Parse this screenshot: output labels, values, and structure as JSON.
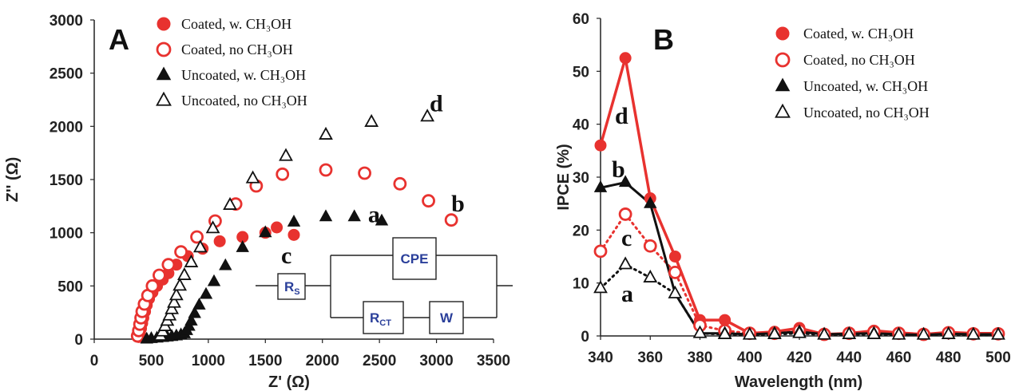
{
  "colors": {
    "red": "#e8322f",
    "black": "#111111",
    "circuit_text": "#2a3f9a"
  },
  "chart_data": [
    {
      "type": "scatter",
      "panel_label": "A",
      "xlabel": "Z' (Ω)",
      "ylabel": "Z'' (Ω)",
      "xlim": [
        0,
        3500
      ],
      "ylim": [
        0,
        3000
      ],
      "x_ticks": [
        0,
        500,
        1000,
        1500,
        2000,
        2500,
        3000,
        3500
      ],
      "y_ticks": [
        0,
        500,
        1000,
        1500,
        2000,
        2500,
        3000
      ],
      "grid": false,
      "legend_position": "top-left",
      "series": [
        {
          "name": "Coated, w. CH₃OH",
          "marker": "filled-circle",
          "color": "#e8322f",
          "curve_label": "d",
          "x": [
            390,
            400,
            410,
            420,
            430,
            445,
            460,
            480,
            510,
            550,
            600,
            650,
            720,
            820,
            950,
            1100,
            1300,
            1500,
            1600,
            1750
          ],
          "y": [
            20,
            60,
            100,
            150,
            200,
            260,
            320,
            380,
            440,
            500,
            560,
            620,
            700,
            780,
            850,
            920,
            960,
            1000,
            1050,
            980
          ]
        },
        {
          "name": "Coated, no CH₃OH",
          "marker": "open-circle",
          "color": "#e8322f",
          "curve_label": "c",
          "x": [
            380,
            390,
            400,
            410,
            420,
            440,
            470,
            510,
            570,
            650,
            760,
            900,
            1060,
            1240,
            1420,
            1650,
            2030,
            2370,
            2680,
            2930,
            3130
          ],
          "y": [
            30,
            80,
            140,
            200,
            260,
            330,
            410,
            500,
            600,
            700,
            820,
            960,
            1110,
            1270,
            1440,
            1550,
            1590,
            1560,
            1460,
            1300,
            1120
          ]
        },
        {
          "name": "Uncoated, w. CH₃OH",
          "marker": "filled-triangle",
          "color": "#111111",
          "curve_label": "b",
          "x": [
            460,
            500,
            550,
            600,
            640,
            680,
            720,
            760,
            790,
            810,
            830,
            850,
            880,
            920,
            980,
            1050,
            1150,
            1300,
            1500,
            1750,
            2030,
            2280,
            2520
          ],
          "y": [
            0,
            5,
            10,
            15,
            20,
            25,
            30,
            40,
            50,
            80,
            120,
            170,
            240,
            320,
            420,
            540,
            690,
            860,
            1000,
            1100,
            1150,
            1150,
            1110
          ]
        },
        {
          "name": "Uncoated, no CH₃OH",
          "marker": "open-triangle",
          "color": "#111111",
          "curve_label": "a",
          "x": [
            580,
            600,
            620,
            640,
            660,
            680,
            700,
            720,
            750,
            790,
            850,
            930,
            1040,
            1190,
            1390,
            1680,
            2030,
            2430,
            2920
          ],
          "y": [
            30,
            70,
            120,
            170,
            220,
            280,
            340,
            410,
            500,
            600,
            720,
            860,
            1040,
            1260,
            1510,
            1720,
            1920,
            2040,
            2090
          ]
        }
      ],
      "inset_circuit": {
        "rs": "R",
        "rs_sub": "S",
        "cpe": "CPE",
        "rct": "R",
        "rct_sub": "CT",
        "w": "W"
      }
    },
    {
      "type": "line",
      "panel_label": "B",
      "xlabel": "Wavelength (nm)",
      "ylabel": "IPCE (%)",
      "xlim": [
        340,
        500
      ],
      "ylim": [
        0,
        60
      ],
      "x_ticks": [
        340,
        360,
        380,
        400,
        420,
        440,
        460,
        480,
        500
      ],
      "y_ticks": [
        0,
        10,
        20,
        30,
        40,
        50,
        60
      ],
      "grid": false,
      "legend_position": "top-right",
      "series": [
        {
          "name": "Coated, w. CH₃OH",
          "marker": "filled-circle",
          "color": "#e8322f",
          "line": "solid",
          "curve_label": "d",
          "x": [
            340,
            350,
            360,
            370,
            380,
            390,
            400,
            410,
            420,
            430,
            440,
            450,
            460,
            470,
            480,
            490,
            500
          ],
          "y": [
            36,
            52.5,
            26,
            15,
            3,
            3,
            0.5,
            0.8,
            1.5,
            0.3,
            0.5,
            1,
            0.6,
            0.3,
            0.7,
            0.5,
            0.5
          ]
        },
        {
          "name": "Coated, no CH₃OH",
          "marker": "open-circle",
          "color": "#e8322f",
          "line": "dotted",
          "curve_label": "c",
          "x": [
            340,
            350,
            360,
            370,
            380,
            390,
            400,
            410,
            420,
            430,
            440,
            450,
            460,
            470,
            480,
            490,
            500
          ],
          "y": [
            16,
            23,
            17,
            12,
            2,
            1,
            0.5,
            0.5,
            1,
            0.3,
            0.5,
            0.8,
            0.5,
            0.3,
            0.6,
            0.4,
            0.4
          ]
        },
        {
          "name": "Uncoated, w. CH₃OH",
          "marker": "filled-triangle",
          "color": "#111111",
          "line": "solid",
          "curve_label": "b",
          "x": [
            340,
            350,
            360,
            370,
            380,
            390,
            400,
            410,
            420,
            430,
            440,
            450,
            460,
            470,
            480,
            490,
            500
          ],
          "y": [
            28,
            29,
            25,
            8,
            0.5,
            0.5,
            0.3,
            0.5,
            0.8,
            0.3,
            0.4,
            0.5,
            0.3,
            0.2,
            0.4,
            0.3,
            0.3
          ]
        },
        {
          "name": "Uncoated, no CH₃OH",
          "marker": "open-triangle",
          "color": "#111111",
          "line": "dotted",
          "curve_label": "a",
          "x": [
            340,
            350,
            360,
            370,
            380,
            390,
            400,
            410,
            420,
            430,
            440,
            450,
            460,
            470,
            480,
            490,
            500
          ],
          "y": [
            9,
            13.5,
            11,
            8,
            0.5,
            0.3,
            0.2,
            0.3,
            0.5,
            0.2,
            0.3,
            0.3,
            0.2,
            0.2,
            0.3,
            0.2,
            0.2
          ]
        }
      ]
    }
  ]
}
